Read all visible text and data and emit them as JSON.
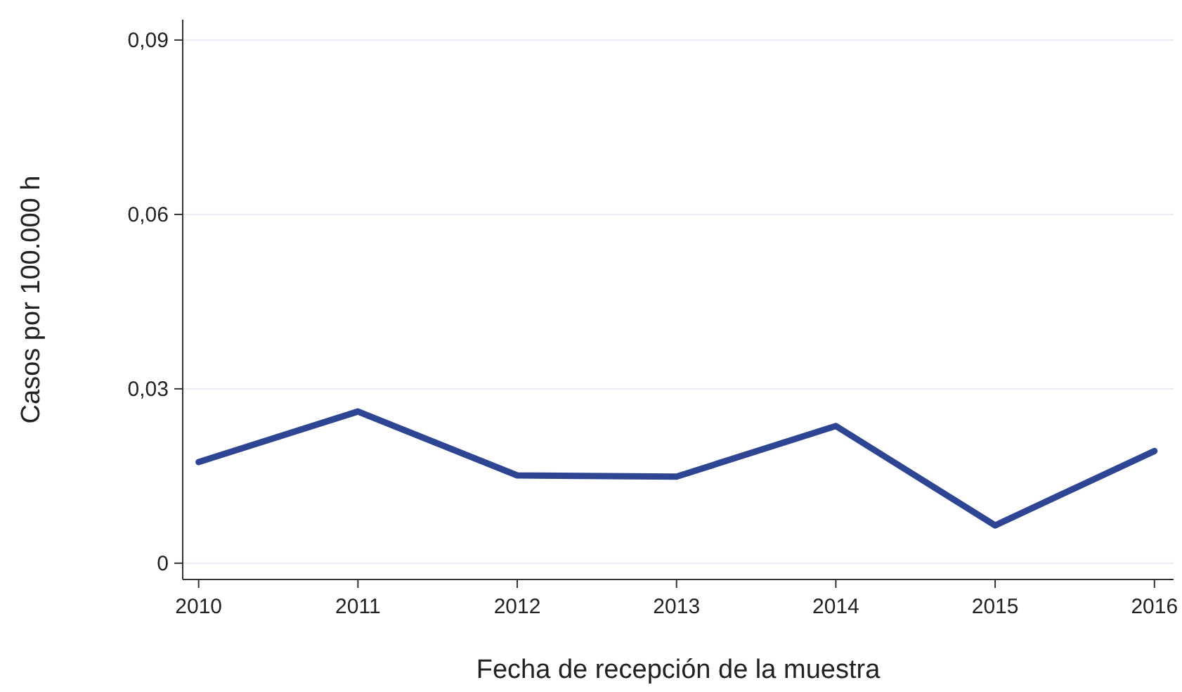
{
  "chart_data": {
    "type": "line",
    "xlabel": "Fecha de recepción de la muestra",
    "ylabel": "Casos por 100.000 h",
    "x": [
      2010,
      2011,
      2012,
      2013,
      2014,
      2015,
      2016
    ],
    "series": [
      {
        "color": "#2e4593",
        "values": [
          0.0174,
          0.0261,
          0.0151,
          0.0149,
          0.0236,
          0.0065,
          0.0193
        ]
      }
    ],
    "xlim": [
      2009.9,
      2016.12
    ],
    "xticks": [
      2010,
      2011,
      2012,
      2013,
      2014,
      2015,
      2016
    ],
    "ylim": [
      -0.0028,
      0.0935
    ],
    "yticks": [
      0,
      {
        "value": 0.03,
        "label": "0,03"
      },
      {
        "value": 0.06,
        "label": "0,06"
      },
      {
        "value": 0.09,
        "label": "0,09"
      }
    ],
    "grid": "y",
    "marker": "none",
    "line_style": "solid"
  }
}
